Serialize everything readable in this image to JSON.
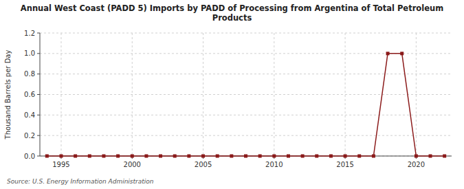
{
  "chart_data": {
    "type": "line",
    "title": "Annual West Coast (PADD 5) Imports by PADD of Processing from Argentina of Total Petroleum\nProducts",
    "ylabel": "Thousand Barrels per Day",
    "annotations": [
      "Source: U.S. Energy Information Administration"
    ],
    "color": "#8b1a1a",
    "marker": "square",
    "grid": true,
    "xlim": [
      1993.5,
      2022.5
    ],
    "xticks": [
      1995,
      2000,
      2005,
      2010,
      2015,
      2020
    ],
    "ylim": [
      0.0,
      1.2
    ],
    "yticks": [
      {
        "value": 0.0,
        "label": "0.0"
      },
      0.2,
      0.4,
      0.6,
      0.8,
      {
        "value": 1.0,
        "label": "1.0"
      },
      1.2
    ],
    "x": [
      1994,
      1995,
      1996,
      1997,
      1998,
      1999,
      2000,
      2001,
      2002,
      2003,
      2004,
      2005,
      2006,
      2007,
      2008,
      2009,
      2010,
      2011,
      2012,
      2013,
      2014,
      2015,
      2016,
      2017,
      2018,
      2019,
      2020,
      2021,
      2022
    ],
    "values": [
      0,
      0,
      0,
      0,
      0,
      0,
      0,
      0,
      0,
      0,
      0,
      0,
      0,
      0,
      0,
      0,
      0,
      0,
      0,
      0,
      0,
      0,
      0,
      0,
      1.0,
      1.0,
      0,
      0,
      0
    ]
  }
}
